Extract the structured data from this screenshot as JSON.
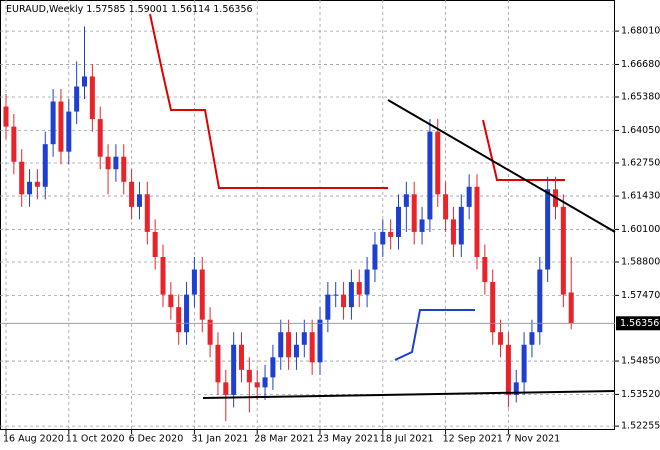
{
  "chart_data": {
    "type": "candlestick",
    "title": "EURAUD,Weekly",
    "categories": [
      "16 Aug 2020",
      null,
      null,
      null,
      null,
      null,
      null,
      null,
      "11 Oct 2020",
      null,
      null,
      null,
      null,
      null,
      null,
      null,
      "6 Dec 2020",
      null,
      null,
      null,
      null,
      null,
      null,
      null,
      "31 Jan 2021",
      null,
      null,
      null,
      null,
      null,
      null,
      null,
      "28 Mar 2021",
      null,
      null,
      null,
      null,
      null,
      null,
      null,
      "23 May 2021",
      null,
      null,
      null,
      null,
      null,
      null,
      null,
      "18 Jul 2021",
      null,
      null,
      null,
      null,
      null,
      null,
      null,
      "12 Sep 2021",
      null,
      null,
      null,
      null,
      null,
      null,
      null,
      "7 Nov 2021",
      null,
      null,
      null,
      null,
      null,
      null,
      null,
      null
    ],
    "open": [
      1.65,
      1.642,
      1.628,
      1.615,
      1.62,
      1.618,
      1.635,
      1.652,
      1.632,
      1.648,
      1.658,
      1.662,
      1.645,
      1.63,
      1.625,
      1.63,
      1.62,
      1.61,
      1.615,
      1.6,
      1.59,
      1.575,
      1.57,
      1.56,
      1.575,
      1.585,
      1.565,
      1.555,
      1.54,
      1.535,
      1.555,
      1.545,
      1.54,
      1.538,
      1.542,
      1.55,
      1.56,
      1.55,
      1.555,
      1.56,
      1.548,
      1.565,
      1.575,
      1.575,
      1.57,
      1.58,
      1.575,
      1.585,
      1.595,
      1.6,
      1.598,
      1.61,
      1.615,
      1.6,
      1.605,
      1.64,
      1.615,
      1.605,
      1.595,
      1.61,
      1.618,
      1.59,
      1.58,
      1.56,
      1.555,
      1.535,
      1.54,
      1.555,
      1.56,
      1.585,
      1.617,
      1.61,
      1.57585
    ],
    "high": [
      1.655,
      1.647,
      1.633,
      1.625,
      1.625,
      1.64,
      1.657,
      1.657,
      1.653,
      1.668,
      1.682,
      1.667,
      1.65,
      1.635,
      1.635,
      1.635,
      1.625,
      1.62,
      1.62,
      1.605,
      1.595,
      1.58,
      1.575,
      1.58,
      1.59,
      1.59,
      1.57,
      1.56,
      1.545,
      1.56,
      1.56,
      1.55,
      1.545,
      1.547,
      1.555,
      1.565,
      1.565,
      1.56,
      1.565,
      1.565,
      1.57,
      1.58,
      1.58,
      1.58,
      1.585,
      1.585,
      1.59,
      1.6,
      1.605,
      1.605,
      1.615,
      1.62,
      1.62,
      1.61,
      1.645,
      1.645,
      1.62,
      1.61,
      1.615,
      1.623,
      1.623,
      1.595,
      1.585,
      1.565,
      1.56,
      1.545,
      1.56,
      1.565,
      1.59,
      1.622,
      1.622,
      1.615,
      1.59001
    ],
    "low": [
      1.637,
      1.623,
      1.61,
      1.61,
      1.613,
      1.613,
      1.63,
      1.627,
      1.627,
      1.643,
      1.653,
      1.64,
      1.625,
      1.615,
      1.62,
      1.615,
      1.605,
      1.605,
      1.595,
      1.585,
      1.57,
      1.565,
      1.555,
      1.555,
      1.57,
      1.56,
      1.55,
      1.535,
      1.5245,
      1.53,
      1.54,
      1.528,
      1.533,
      1.533,
      1.537,
      1.545,
      1.545,
      1.545,
      1.55,
      1.543,
      1.543,
      1.56,
      1.57,
      1.565,
      1.565,
      1.57,
      1.57,
      1.58,
      1.59,
      1.593,
      1.593,
      1.6,
      1.595,
      1.595,
      1.6,
      1.61,
      1.6,
      1.59,
      1.59,
      1.605,
      1.585,
      1.575,
      1.555,
      1.55,
      1.53,
      1.532,
      1.535,
      1.55,
      1.555,
      1.58,
      1.605,
      1.57,
      1.56114
    ],
    "close": [
      1.642,
      1.628,
      1.615,
      1.62,
      1.618,
      1.635,
      1.652,
      1.632,
      1.648,
      1.658,
      1.662,
      1.645,
      1.63,
      1.625,
      1.63,
      1.62,
      1.61,
      1.615,
      1.6,
      1.59,
      1.575,
      1.57,
      1.56,
      1.575,
      1.585,
      1.565,
      1.555,
      1.54,
      1.535,
      1.555,
      1.545,
      1.54,
      1.538,
      1.542,
      1.55,
      1.56,
      1.55,
      1.555,
      1.56,
      1.548,
      1.565,
      1.575,
      1.575,
      1.57,
      1.58,
      1.575,
      1.585,
      1.595,
      1.6,
      1.598,
      1.61,
      1.615,
      1.6,
      1.605,
      1.64,
      1.615,
      1.605,
      1.595,
      1.61,
      1.618,
      1.59,
      1.58,
      1.56,
      1.555,
      1.535,
      1.54,
      1.555,
      1.56,
      1.585,
      1.617,
      1.61,
      1.575,
      1.56356
    ],
    "up_color": "#1f3fd1",
    "down_color": "#e8232a",
    "ylim": [
      1.521,
      1.6925
    ],
    "yticks": [
      {
        "value": 1.6801,
        "label": "1.68010"
      },
      {
        "value": 1.6668,
        "label": "1.66680"
      },
      {
        "value": 1.6538,
        "label": "1.65380"
      },
      {
        "value": 1.6405,
        "label": "1.64050"
      },
      {
        "value": 1.6275,
        "label": "1.62750"
      },
      {
        "value": 1.6143,
        "label": "1.61430"
      },
      {
        "value": 1.601,
        "label": "1.60100"
      },
      {
        "value": 1.588,
        "label": "1.58800"
      },
      {
        "value": 1.5747,
        "label": "1.57470"
      },
      {
        "value": 1.5485,
        "label": "1.54850"
      },
      {
        "value": 1.5352,
        "label": "1.53520"
      },
      {
        "value": 1.52255,
        "label": "1.52255"
      }
    ],
    "grid": true
  }
}
